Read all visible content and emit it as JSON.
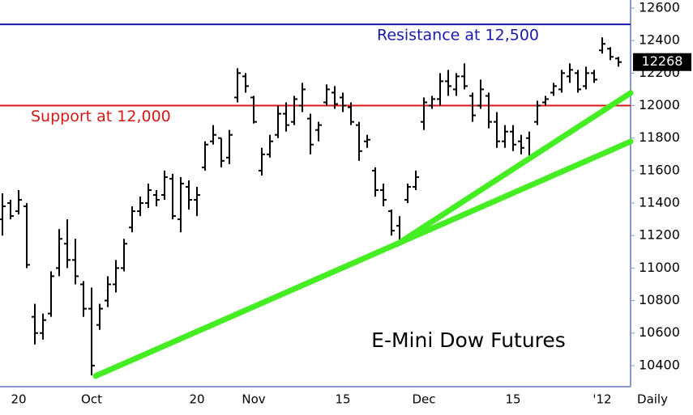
{
  "chart_data": {
    "type": "ohlc",
    "title": "E-Mini Dow Futures",
    "xlabel": "Daily",
    "color": "#000000",
    "categories": [
      null,
      null,
      "20",
      null,
      null,
      null,
      null,
      null,
      null,
      null,
      null,
      "Oct",
      null,
      null,
      null,
      null,
      null,
      null,
      null,
      null,
      null,
      null,
      null,
      null,
      "20",
      null,
      null,
      null,
      null,
      null,
      null,
      "Nov",
      null,
      null,
      null,
      null,
      null,
      null,
      null,
      null,
      null,
      null,
      "15",
      null,
      null,
      null,
      null,
      null,
      null,
      null,
      null,
      null,
      "Dec",
      null,
      null,
      null,
      null,
      null,
      null,
      null,
      null,
      null,
      null,
      "15",
      null,
      null,
      null,
      null,
      null,
      null,
      null,
      null,
      null,
      null,
      "'12",
      null,
      null
    ],
    "open": [
      11300,
      11400,
      11350,
      11380,
      10700,
      10600,
      10720,
      11000,
      11150,
      11050,
      10900,
      10750,
      10650,
      10800,
      10900,
      11000,
      11250,
      11350,
      11400,
      11450,
      11450,
      11550,
      11300,
      11500,
      11420,
      11620,
      11780,
      11800,
      11680,
      12050,
      12180,
      12050,
      11600,
      11700,
      11820,
      11950,
      11900,
      12000,
      11920,
      11850,
      12020,
      12080,
      12050,
      11990,
      11880,
      11780,
      11600,
      11480,
      11350,
      11260,
      11420,
      11500,
      11900,
      12000,
      12040,
      12150,
      12100,
      12180,
      12060,
      12000,
      12060,
      11900,
      11780,
      11840,
      11780,
      11800,
      11900,
      12020,
      12080,
      12100,
      12180,
      12200,
      12120,
      12200,
      12340,
      12350,
      12290
    ],
    "high": [
      11460,
      11420,
      11480,
      11400,
      10780,
      10720,
      10980,
      11240,
      11300,
      11180,
      10920,
      10880,
      10780,
      10950,
      11050,
      11180,
      11380,
      11440,
      11520,
      11480,
      11600,
      11580,
      11560,
      11540,
      11500,
      11780,
      11880,
      11800,
      11850,
      12230,
      12200,
      12060,
      11740,
      11820,
      12000,
      12020,
      12060,
      12140,
      11950,
      11900,
      12130,
      12120,
      12080,
      12020,
      11900,
      11820,
      11620,
      11520,
      11360,
      11320,
      11520,
      11600,
      12050,
      12060,
      12200,
      12220,
      12200,
      12260,
      12080,
      12160,
      12080,
      11960,
      11880,
      11880,
      11820,
      11840,
      12030,
      12060,
      12140,
      12220,
      12260,
      12220,
      12240,
      12220,
      12420,
      12360,
      12300
    ],
    "low": [
      11200,
      11300,
      11330,
      11000,
      10530,
      10560,
      10700,
      10950,
      11000,
      10900,
      10700,
      10340,
      10620,
      10760,
      10850,
      10980,
      11220,
      11320,
      11370,
      11380,
      11420,
      11300,
      11220,
      11360,
      11320,
      11600,
      11760,
      11620,
      11640,
      12020,
      12080,
      11890,
      11570,
      11680,
      11800,
      11840,
      11880,
      11960,
      11700,
      11780,
      12000,
      11980,
      11960,
      11880,
      11660,
      11740,
      11440,
      11380,
      11200,
      11140,
      11400,
      11480,
      11850,
      11980,
      12000,
      12060,
      12060,
      12100,
      11900,
      11980,
      11860,
      11740,
      11740,
      11720,
      11700,
      11660,
      11880,
      12000,
      12060,
      12080,
      12140,
      12080,
      12100,
      12140,
      12320,
      12280,
      12240
    ],
    "close": [
      11380,
      11320,
      11420,
      11020,
      10600,
      10680,
      10950,
      11180,
      11050,
      10950,
      10750,
      10400,
      10750,
      10900,
      11000,
      11150,
      11350,
      11400,
      11480,
      11420,
      11560,
      11320,
      11520,
      11420,
      11450,
      11760,
      11820,
      11660,
      11820,
      12200,
      12120,
      11900,
      11700,
      11780,
      11950,
      11880,
      12040,
      12100,
      11760,
      11880,
      12100,
      12010,
      12000,
      11900,
      11720,
      11790,
      11480,
      11420,
      11230,
      11170,
      11500,
      11560,
      12020,
      12040,
      12150,
      12120,
      12180,
      12120,
      11940,
      12100,
      11900,
      11780,
      11840,
      11760,
      11740,
      11680,
      12000,
      12040,
      12120,
      12200,
      12220,
      12100,
      12200,
      12160,
      12380,
      12300,
      12268
    ],
    "ylim": [
      10270,
      12650
    ],
    "yticks": [
      10400,
      10600,
      10800,
      11000,
      11200,
      11400,
      11600,
      11800,
      12000,
      12200,
      12400,
      12600
    ],
    "levels": [
      {
        "label": "Resistance at 12,500",
        "value": 12500,
        "color": "#1a1aa8"
      },
      {
        "label": "Support at 12,000",
        "value": 12000,
        "color": "#d81818"
      }
    ],
    "trendlines": [
      {
        "x": [
          11.5,
          77.5
        ],
        "y": [
          10336,
          11779
        ],
        "color": "#44ee22"
      },
      {
        "x": [
          48.7,
          77.5
        ],
        "y": [
          11147,
          12078
        ],
        "color": "#44ee22"
      }
    ]
  }
}
